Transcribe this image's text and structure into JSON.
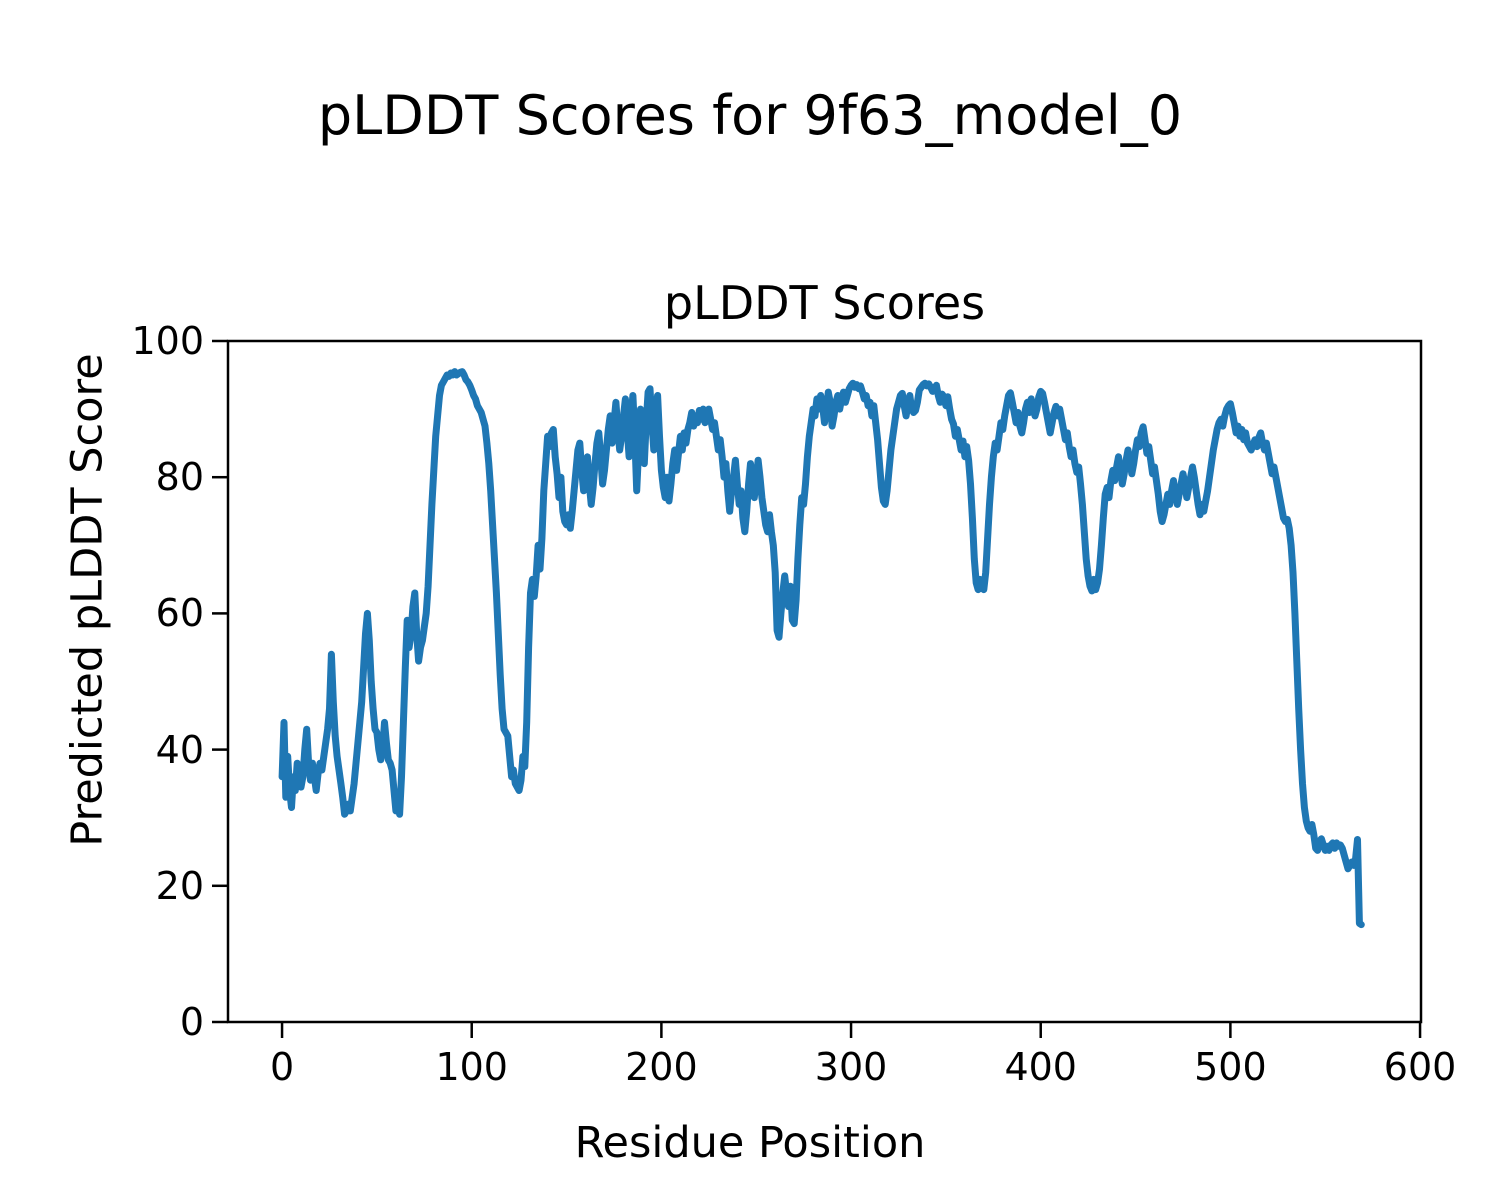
{
  "figure": {
    "suptitle": "pLDDT Scores for 9f63_model_0",
    "background": "#ffffff",
    "text_color": "#000000"
  },
  "chart_data": {
    "type": "line",
    "title": "pLDDT Scores",
    "xlabel": "Residue Position",
    "ylabel": "Predicted pLDDT Score",
    "x_ticks": [
      0,
      100,
      200,
      300,
      400,
      500,
      600
    ],
    "y_ticks": [
      0,
      20,
      40,
      60,
      80,
      100
    ],
    "xlim": [
      -28.5,
      600.5
    ],
    "ylim": [
      0,
      100
    ],
    "grid": false,
    "legend": "none",
    "line_color": "#1f77b4",
    "spine_color": "#000000",
    "series": [
      {
        "name": "pLDDT",
        "x_start": 0,
        "x_step": 1,
        "values": [
          36,
          44,
          33,
          39,
          34,
          31.5,
          36,
          34,
          38,
          36,
          34.5,
          36,
          40,
          43,
          38,
          35.5,
          38,
          36,
          34,
          36.5,
          38,
          37,
          39,
          41,
          43,
          46,
          54,
          47,
          42,
          39,
          37,
          35,
          33,
          30.5,
          31,
          32,
          31,
          33,
          35,
          38,
          41,
          44,
          47,
          52,
          57,
          60,
          56,
          50,
          46,
          43,
          42.5,
          40,
          38.5,
          40,
          44,
          41,
          38.5,
          38,
          37,
          34,
          31,
          33,
          30.5,
          36,
          44,
          52,
          59,
          55,
          57,
          61,
          63,
          57,
          53,
          55,
          56,
          58,
          60,
          64,
          70,
          76,
          81,
          86,
          89,
          92,
          93.5,
          94,
          94.5,
          95,
          94.8,
          95.3,
          95,
          95.5,
          95,
          95.2,
          95.4,
          95.5,
          95,
          94.3,
          94,
          93.5,
          92.8,
          92,
          91.5,
          90.5,
          90,
          89.5,
          88.5,
          87.5,
          85,
          82,
          78,
          73,
          68,
          63,
          57,
          51,
          46,
          43,
          42.5,
          42,
          39,
          36,
          37,
          35,
          34.5,
          34,
          35.5,
          39,
          37.5,
          44,
          55,
          63,
          65,
          62.5,
          65.5,
          70,
          66.5,
          71,
          78,
          82,
          86,
          84.5,
          86.5,
          87,
          83,
          80.5,
          77,
          80,
          75,
          73.5,
          73,
          74.5,
          72.5,
          75,
          78,
          81,
          84,
          85,
          81,
          78,
          80,
          83,
          79,
          76,
          78.5,
          82,
          85,
          86.5,
          83,
          79,
          81,
          84,
          87,
          89,
          85,
          88,
          91,
          87,
          84,
          86,
          89,
          91.5,
          87,
          83,
          89,
          92,
          86,
          78,
          84,
          90,
          87,
          82,
          88,
          92.5,
          93,
          88,
          84,
          90,
          92,
          86,
          81,
          78.5,
          77,
          80,
          76.5,
          79,
          82,
          84,
          81,
          83.5,
          86,
          84,
          86.5,
          85,
          87,
          88,
          89.5,
          87.5,
          89,
          88,
          89.8,
          88.5,
          90,
          88,
          89,
          90,
          88.5,
          87,
          88,
          86,
          84,
          85.5,
          83,
          80,
          82,
          78,
          75,
          78,
          80,
          82.5,
          79,
          76,
          78,
          74,
          72,
          75,
          79,
          82,
          80,
          77,
          79.5,
          82.5,
          80,
          77,
          75,
          73,
          72,
          74.5,
          72,
          70,
          66,
          57.5,
          56.5,
          60,
          63,
          65.5,
          63,
          61,
          64,
          59,
          58.5,
          62,
          68,
          73,
          77,
          76,
          79,
          83,
          86,
          88,
          90,
          89,
          91.5,
          90,
          92,
          90.5,
          88,
          90,
          92.5,
          91,
          87.5,
          89,
          91,
          92,
          90,
          91.5,
          92.5,
          91,
          92,
          93,
          93.5,
          93.8,
          93.2,
          93.6,
          93,
          93.4,
          92.5,
          91.5,
          92,
          90.5,
          91,
          89,
          90.5,
          88,
          85.5,
          82,
          78.5,
          76.5,
          76,
          78,
          81,
          84,
          86,
          88,
          90,
          91,
          92,
          92.3,
          90.5,
          89,
          90.8,
          92,
          90,
          89.5,
          89.8,
          91,
          92.8,
          93.2,
          93.6,
          93.8,
          93.4,
          93.7,
          93.2,
          92.6,
          93,
          93.5,
          92,
          91,
          92.2,
          91.8,
          90.5,
          91.8,
          90,
          88.5,
          87.8,
          86,
          87,
          85.5,
          84,
          85.3,
          83,
          84.5,
          82.5,
          79,
          74,
          68,
          64.5,
          63.5,
          65,
          64,
          63.5,
          66,
          71,
          76,
          80,
          83,
          85,
          84,
          86,
          88,
          87,
          89,
          90.5,
          92,
          92.4,
          91,
          89.5,
          88,
          89.5,
          87.5,
          86.5,
          88,
          90,
          91,
          89.5,
          91.5,
          90.5,
          89,
          90,
          91.8,
          92.6,
          92.3,
          91,
          89.5,
          88,
          86.5,
          88,
          89.5,
          90.4,
          89,
          90,
          88.5,
          87,
          85.5,
          86.5,
          84.5,
          83,
          84,
          82,
          80.7,
          81.5,
          79,
          76,
          72,
          68,
          65.5,
          64,
          63.3,
          65,
          63.5,
          64.5,
          66.5,
          70,
          74,
          77.5,
          78.5,
          77,
          79.5,
          81,
          79.5,
          81.5,
          83,
          81,
          79,
          80.5,
          82.5,
          84,
          82.5,
          80.5,
          82,
          84,
          85.5,
          84.5,
          86.5,
          87.4,
          85.5,
          83.5,
          84.5,
          82.5,
          80.5,
          81.5,
          79.5,
          77.5,
          75,
          73.5,
          74.5,
          76,
          77.5,
          76,
          78,
          79.5,
          77.5,
          76,
          77.5,
          79,
          80.5,
          79,
          77,
          78.5,
          80,
          81.5,
          80,
          78,
          76,
          74.5,
          76,
          75,
          76.5,
          78,
          80,
          82,
          84,
          85.5,
          87,
          88,
          88.5,
          87.5,
          89,
          90,
          90.5,
          90.8,
          89.5,
          88,
          86.5,
          87.5,
          86,
          87,
          85.5,
          86.5,
          85,
          84.5,
          84,
          84.8,
          85.5,
          84.5,
          85.8,
          86.5,
          85,
          84,
          85,
          83.5,
          82,
          80.5,
          81.5,
          80,
          78.5,
          77,
          75.5,
          74,
          73.5,
          73.8,
          72.5,
          70,
          66,
          60,
          53,
          46,
          40,
          35,
          31.5,
          29.5,
          28.5,
          28,
          29,
          27.5,
          25.5,
          25.2,
          26.5,
          26.9,
          26,
          25.2,
          25.8,
          25.2,
          26,
          26.3,
          25.5,
          26.3,
          25.8,
          26,
          25.5,
          24.5,
          23.5,
          22.5,
          23,
          23.5,
          23,
          24,
          26.8,
          14.5,
          14.3
        ]
      }
    ]
  }
}
